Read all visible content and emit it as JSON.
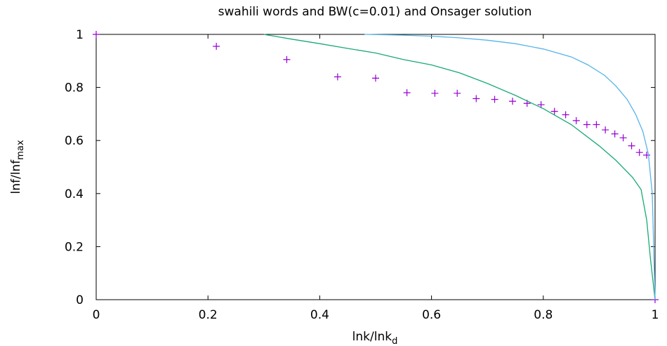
{
  "chart_data": {
    "type": "line",
    "title": "swahili words and BW(c=0.01) and Onsager solution",
    "xlabel": {
      "main": "lnk/lnk",
      "sub": "d"
    },
    "ylabel": {
      "main": "lnf/lnf",
      "sub": "max"
    },
    "xlim": [
      0,
      1
    ],
    "ylim": [
      0,
      1
    ],
    "xticks": [
      "0",
      "0.2",
      "0.4",
      "0.6",
      "0.8",
      "1"
    ],
    "yticks": [
      "0",
      "0.2",
      "0.4",
      "0.6",
      "0.8",
      "1"
    ],
    "grid": false,
    "legend": "none",
    "series": [
      {
        "kind": "points",
        "color": "#9400d3",
        "x": [
          0.0,
          0.215,
          0.341,
          0.432,
          0.5,
          0.556,
          0.606,
          0.646,
          0.68,
          0.713,
          0.745,
          0.771,
          0.796,
          0.82,
          0.84,
          0.859,
          0.878,
          0.895,
          0.911,
          0.928,
          0.943,
          0.958,
          0.972,
          0.985,
          1.0
        ],
        "y": [
          1.0,
          0.955,
          0.905,
          0.84,
          0.835,
          0.78,
          0.778,
          0.778,
          0.758,
          0.755,
          0.748,
          0.74,
          0.735,
          0.71,
          0.697,
          0.675,
          0.66,
          0.66,
          0.64,
          0.625,
          0.61,
          0.58,
          0.555,
          0.545,
          0.0
        ]
      },
      {
        "kind": "line",
        "color": "#1aaa74",
        "x": [
          0.3,
          0.35,
          0.4,
          0.45,
          0.5,
          0.55,
          0.6,
          0.65,
          0.7,
          0.75,
          0.8,
          0.85,
          0.9,
          0.93,
          0.96,
          0.975,
          0.985,
          0.992,
          1.0
        ],
        "y": [
          1.0,
          0.982,
          0.965,
          0.947,
          0.93,
          0.905,
          0.885,
          0.855,
          0.815,
          0.77,
          0.72,
          0.66,
          0.58,
          0.525,
          0.46,
          0.415,
          0.3,
          0.15,
          0.0
        ]
      },
      {
        "kind": "line",
        "color": "#56b4e9",
        "x": [
          0.48,
          0.55,
          0.6,
          0.65,
          0.7,
          0.75,
          0.8,
          0.85,
          0.88,
          0.91,
          0.93,
          0.95,
          0.965,
          0.978,
          0.988,
          0.995,
          1.0
        ],
        "y": [
          1.0,
          0.997,
          0.993,
          0.987,
          0.978,
          0.965,
          0.945,
          0.915,
          0.885,
          0.845,
          0.805,
          0.755,
          0.7,
          0.635,
          0.55,
          0.4,
          0.0
        ]
      }
    ]
  }
}
